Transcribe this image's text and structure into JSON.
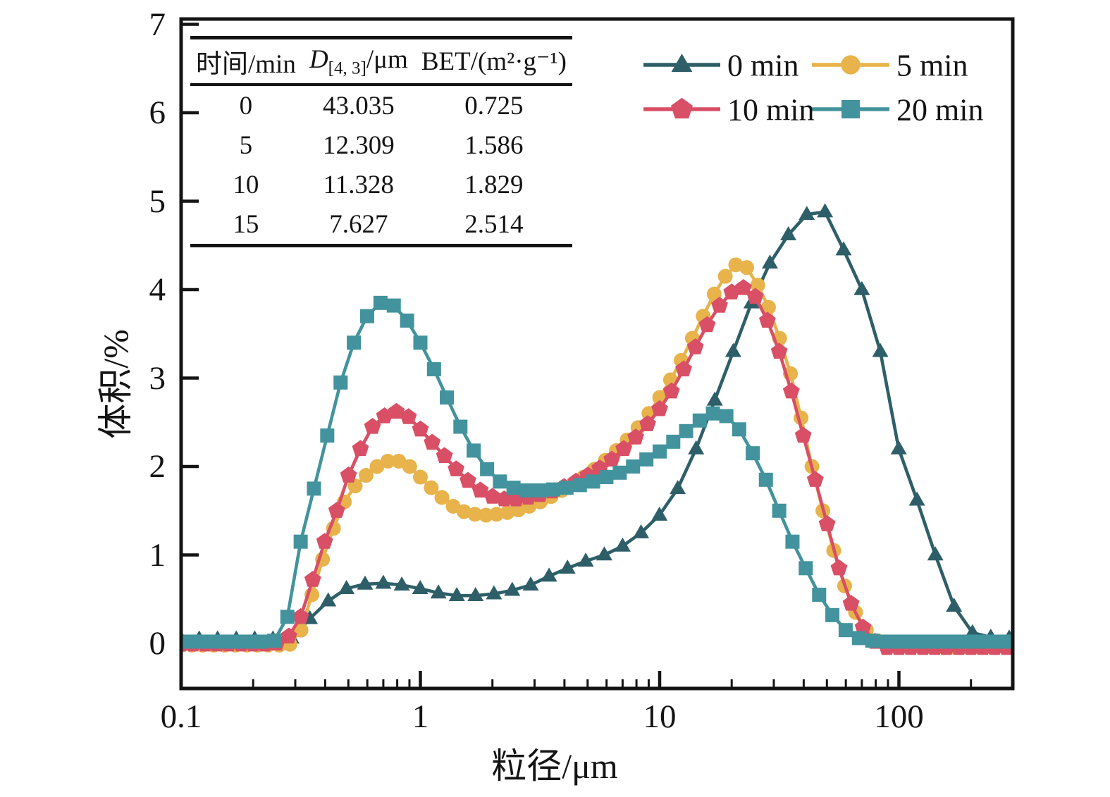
{
  "figure": {
    "background": "#ffffff",
    "frame_color": "#141414"
  },
  "inset_table": {
    "headers": {
      "time": "时间/min",
      "d_prefix": "D",
      "d_sub": "[4, 3]",
      "d_suffix": "/μm",
      "bet": "BET/(m²·g⁻¹)"
    },
    "rows": [
      {
        "time": "0",
        "d43": "43.035",
        "bet": "0.725"
      },
      {
        "time": "5",
        "d43": "12.309",
        "bet": "1.586"
      },
      {
        "time": "10",
        "d43": "11.328",
        "bet": "1.829"
      },
      {
        "time": "15",
        "d43": "7.627",
        "bet": "2.514"
      }
    ]
  },
  "chart_data": {
    "type": "line",
    "title": "",
    "xlabel": "粒径/μm",
    "ylabel": "体积/%",
    "xscale": "log",
    "xlim": [
      0.1,
      300
    ],
    "ylim": [
      -0.51,
      7.02
    ],
    "grid": false,
    "legend_position": "top-right",
    "x_major_ticks": [
      {
        "v": 0.1,
        "label": "0.1"
      },
      {
        "v": 1,
        "label": "1"
      },
      {
        "v": 10,
        "label": "10"
      },
      {
        "v": 100,
        "label": "100"
      }
    ],
    "x_minor_ticks": [
      0.2,
      0.3,
      0.4,
      0.5,
      0.6,
      0.7,
      0.8,
      0.9,
      2,
      3,
      4,
      5,
      6,
      7,
      8,
      9,
      20,
      30,
      40,
      50,
      60,
      70,
      80,
      90,
      200,
      300
    ],
    "y_ticks": [
      {
        "v": 0,
        "label": "0"
      },
      {
        "v": 1,
        "label": "1"
      },
      {
        "v": 2,
        "label": "2"
      },
      {
        "v": 3,
        "label": "3"
      },
      {
        "v": 4,
        "label": "4"
      },
      {
        "v": 5,
        "label": "5"
      },
      {
        "v": 6,
        "label": "6"
      },
      {
        "v": 7,
        "label": "7"
      }
    ],
    "series": [
      {
        "name": "0 min",
        "color": "#2e5f68",
        "marker": "triangle",
        "points": [
          [
            0.1,
            0.05
          ],
          [
            0.119,
            0.05
          ],
          [
            0.142,
            0.05
          ],
          [
            0.17,
            0.05
          ],
          [
            0.203,
            0.05
          ],
          [
            0.242,
            0.05
          ],
          [
            0.289,
            0.06
          ],
          [
            0.345,
            0.28
          ],
          [
            0.412,
            0.48
          ],
          [
            0.491,
            0.62
          ],
          [
            0.587,
            0.67
          ],
          [
            0.7,
            0.68
          ],
          [
            0.836,
            0.66
          ],
          [
            0.998,
            0.62
          ],
          [
            1.19,
            0.57
          ],
          [
            1.42,
            0.54
          ],
          [
            1.7,
            0.54
          ],
          [
            2.03,
            0.56
          ],
          [
            2.42,
            0.6
          ],
          [
            2.89,
            0.66
          ],
          [
            3.45,
            0.76
          ],
          [
            4.12,
            0.85
          ],
          [
            4.91,
            0.93
          ],
          [
            5.87,
            1.0
          ],
          [
            7.0,
            1.1
          ],
          [
            8.36,
            1.25
          ],
          [
            9.98,
            1.45
          ],
          [
            11.9,
            1.75
          ],
          [
            14.2,
            2.2
          ],
          [
            17.0,
            2.75
          ],
          [
            20.3,
            3.3
          ],
          [
            24.2,
            3.85
          ],
          [
            28.9,
            4.3
          ],
          [
            34.5,
            4.62
          ],
          [
            41.2,
            4.85
          ],
          [
            49.1,
            4.88
          ],
          [
            58.7,
            4.45
          ],
          [
            70.0,
            4.0
          ],
          [
            83.6,
            3.3
          ],
          [
            99.8,
            2.2
          ],
          [
            119,
            1.62
          ],
          [
            142,
            1.0
          ],
          [
            170,
            0.42
          ],
          [
            203,
            0.12
          ],
          [
            242,
            0.07
          ],
          [
            289,
            0.06
          ]
        ]
      },
      {
        "name": "5 min",
        "color": "#e7b34a",
        "marker": "circle",
        "points": [
          [
            0.1,
            -0.02
          ],
          [
            0.111,
            -0.02
          ],
          [
            0.123,
            -0.02
          ],
          [
            0.137,
            -0.02
          ],
          [
            0.152,
            -0.02
          ],
          [
            0.169,
            -0.02
          ],
          [
            0.188,
            -0.02
          ],
          [
            0.208,
            -0.02
          ],
          [
            0.231,
            -0.02
          ],
          [
            0.257,
            -0.02
          ],
          [
            0.285,
            -0.01
          ],
          [
            0.317,
            0.15
          ],
          [
            0.352,
            0.55
          ],
          [
            0.39,
            0.95
          ],
          [
            0.433,
            1.3
          ],
          [
            0.481,
            1.6
          ],
          [
            0.534,
            1.78
          ],
          [
            0.593,
            1.9
          ],
          [
            0.659,
            2.0
          ],
          [
            0.731,
            2.06
          ],
          [
            0.812,
            2.06
          ],
          [
            0.902,
            2.0
          ],
          [
            1.0,
            1.88
          ],
          [
            1.11,
            1.76
          ],
          [
            1.23,
            1.65
          ],
          [
            1.37,
            1.55
          ],
          [
            1.52,
            1.49
          ],
          [
            1.69,
            1.46
          ],
          [
            1.88,
            1.45
          ],
          [
            2.08,
            1.46
          ],
          [
            2.31,
            1.48
          ],
          [
            2.57,
            1.51
          ],
          [
            2.85,
            1.55
          ],
          [
            3.17,
            1.6
          ],
          [
            3.52,
            1.66
          ],
          [
            3.9,
            1.73
          ],
          [
            4.33,
            1.8
          ],
          [
            4.81,
            1.88
          ],
          [
            5.34,
            1.97
          ],
          [
            5.93,
            2.07
          ],
          [
            6.59,
            2.18
          ],
          [
            7.31,
            2.3
          ],
          [
            8.12,
            2.44
          ],
          [
            9.02,
            2.6
          ],
          [
            10,
            2.78
          ],
          [
            11.1,
            2.98
          ],
          [
            12.3,
            3.2
          ],
          [
            13.7,
            3.45
          ],
          [
            15.2,
            3.7
          ],
          [
            16.9,
            3.95
          ],
          [
            18.8,
            4.15
          ],
          [
            20.8,
            4.28
          ],
          [
            23.1,
            4.25
          ],
          [
            25.7,
            4.05
          ],
          [
            28.5,
            3.8
          ],
          [
            31.7,
            3.45
          ],
          [
            35.2,
            3.05
          ],
          [
            39,
            2.55
          ],
          [
            43.3,
            2.0
          ],
          [
            48.1,
            1.5
          ],
          [
            53.4,
            1.05
          ],
          [
            59.3,
            0.65
          ],
          [
            65.9,
            0.35
          ],
          [
            73.1,
            0.15
          ],
          [
            81.2,
            0.03
          ],
          [
            90.2,
            -0.03
          ],
          [
            100,
            -0.04
          ],
          [
            111,
            -0.04
          ],
          [
            123,
            -0.04
          ],
          [
            137,
            -0.04
          ],
          [
            152,
            -0.04
          ],
          [
            169,
            -0.04
          ],
          [
            188,
            -0.04
          ],
          [
            208,
            -0.04
          ],
          [
            231,
            -0.04
          ],
          [
            257,
            -0.04
          ],
          [
            285,
            -0.04
          ]
        ]
      },
      {
        "name": "10 min",
        "color": "#d84f66",
        "marker": "pentagon",
        "points": [
          [
            0.1,
            -0.01
          ],
          [
            0.112,
            -0.01
          ],
          [
            0.126,
            -0.01
          ],
          [
            0.141,
            -0.01
          ],
          [
            0.158,
            -0.01
          ],
          [
            0.178,
            -0.01
          ],
          [
            0.2,
            -0.01
          ],
          [
            0.224,
            -0.01
          ],
          [
            0.251,
            0.0
          ],
          [
            0.282,
            0.08
          ],
          [
            0.316,
            0.3
          ],
          [
            0.355,
            0.72
          ],
          [
            0.398,
            1.15
          ],
          [
            0.447,
            1.5
          ],
          [
            0.501,
            1.9
          ],
          [
            0.562,
            2.2
          ],
          [
            0.631,
            2.45
          ],
          [
            0.708,
            2.57
          ],
          [
            0.794,
            2.62
          ],
          [
            0.891,
            2.56
          ],
          [
            1.0,
            2.42
          ],
          [
            1.12,
            2.27
          ],
          [
            1.26,
            2.12
          ],
          [
            1.41,
            1.97
          ],
          [
            1.58,
            1.84
          ],
          [
            1.78,
            1.73
          ],
          [
            2.0,
            1.66
          ],
          [
            2.24,
            1.63
          ],
          [
            2.51,
            1.63
          ],
          [
            2.82,
            1.65
          ],
          [
            3.16,
            1.68
          ],
          [
            3.55,
            1.72
          ],
          [
            3.98,
            1.77
          ],
          [
            4.47,
            1.83
          ],
          [
            5.01,
            1.9
          ],
          [
            5.62,
            1.98
          ],
          [
            6.31,
            2.08
          ],
          [
            7.08,
            2.2
          ],
          [
            7.94,
            2.33
          ],
          [
            8.91,
            2.48
          ],
          [
            10,
            2.65
          ],
          [
            11.2,
            2.85
          ],
          [
            12.6,
            3.1
          ],
          [
            14.1,
            3.35
          ],
          [
            15.8,
            3.6
          ],
          [
            17.8,
            3.82
          ],
          [
            20,
            3.97
          ],
          [
            22.4,
            4.02
          ],
          [
            25.1,
            3.92
          ],
          [
            28.2,
            3.65
          ],
          [
            31.6,
            3.3
          ],
          [
            35.5,
            2.85
          ],
          [
            39.8,
            2.35
          ],
          [
            44.7,
            1.85
          ],
          [
            50.1,
            1.35
          ],
          [
            56.2,
            0.85
          ],
          [
            63.1,
            0.45
          ],
          [
            70.8,
            0.18
          ],
          [
            79.4,
            0.02
          ],
          [
            89.1,
            -0.05
          ],
          [
            100,
            -0.05
          ],
          [
            112,
            -0.05
          ],
          [
            126,
            -0.05
          ],
          [
            141,
            -0.05
          ],
          [
            158,
            -0.05
          ],
          [
            178,
            -0.05
          ],
          [
            200,
            -0.05
          ],
          [
            224,
            -0.05
          ],
          [
            251,
            -0.05
          ],
          [
            282,
            -0.05
          ]
        ]
      },
      {
        "name": "20 min",
        "color": "#42939d",
        "marker": "square",
        "points": [
          [
            0.1,
            0.02
          ],
          [
            0.114,
            0.02
          ],
          [
            0.129,
            0.02
          ],
          [
            0.147,
            0.02
          ],
          [
            0.167,
            0.02
          ],
          [
            0.19,
            0.02
          ],
          [
            0.215,
            0.02
          ],
          [
            0.245,
            0.03
          ],
          [
            0.278,
            0.3
          ],
          [
            0.316,
            1.15
          ],
          [
            0.359,
            1.75
          ],
          [
            0.408,
            2.35
          ],
          [
            0.464,
            2.95
          ],
          [
            0.527,
            3.4
          ],
          [
            0.599,
            3.7
          ],
          [
            0.681,
            3.85
          ],
          [
            0.774,
            3.82
          ],
          [
            0.88,
            3.65
          ],
          [
            1.0,
            3.4
          ],
          [
            1.14,
            3.1
          ],
          [
            1.29,
            2.78
          ],
          [
            1.47,
            2.45
          ],
          [
            1.67,
            2.18
          ],
          [
            1.9,
            1.97
          ],
          [
            2.15,
            1.83
          ],
          [
            2.45,
            1.76
          ],
          [
            2.78,
            1.73
          ],
          [
            3.16,
            1.73
          ],
          [
            3.59,
            1.74
          ],
          [
            4.08,
            1.76
          ],
          [
            4.64,
            1.79
          ],
          [
            5.27,
            1.83
          ],
          [
            5.99,
            1.88
          ],
          [
            6.81,
            1.93
          ],
          [
            7.74,
            2.0
          ],
          [
            8.8,
            2.08
          ],
          [
            10,
            2.17
          ],
          [
            11.4,
            2.28
          ],
          [
            12.9,
            2.4
          ],
          [
            14.7,
            2.52
          ],
          [
            16.7,
            2.6
          ],
          [
            19,
            2.57
          ],
          [
            21.5,
            2.42
          ],
          [
            24.5,
            2.15
          ],
          [
            27.8,
            1.85
          ],
          [
            31.6,
            1.5
          ],
          [
            35.9,
            1.15
          ],
          [
            40.8,
            0.85
          ],
          [
            46.4,
            0.55
          ],
          [
            52.7,
            0.32
          ],
          [
            59.9,
            0.15
          ],
          [
            68.1,
            0.06
          ],
          [
            77.4,
            0.03
          ],
          [
            88,
            0.02
          ],
          [
            100,
            0.02
          ],
          [
            114,
            0.02
          ],
          [
            129,
            0.02
          ],
          [
            147,
            0.02
          ],
          [
            167,
            0.02
          ],
          [
            190,
            0.02
          ],
          [
            215,
            0.02
          ],
          [
            245,
            0.02
          ],
          [
            278,
            0.02
          ]
        ]
      }
    ]
  }
}
